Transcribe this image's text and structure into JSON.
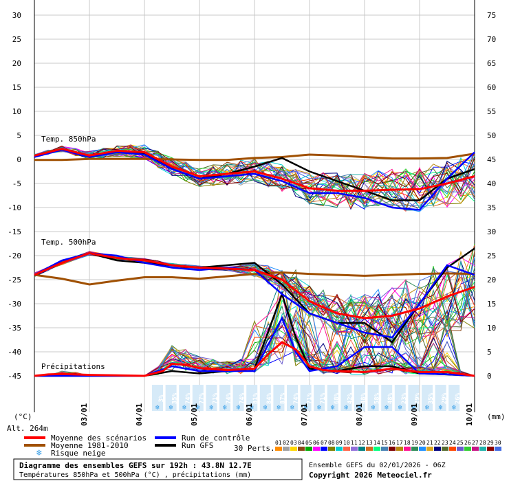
{
  "chart_data": {
    "type": "line",
    "title": "Diagramme des ensembles GEFS sur 192h : 43.8N 12.7E",
    "subtitle": "Températures 850hPa et 500hPa (°C) , précipitations (mm)",
    "run_info": "Ensemble GEFS du 02/01/2026 - 06Z",
    "copyright": "Copyright 2026 Meteociel.fr",
    "altitude": "Alt. 264m",
    "ylabel_left": "(°C)",
    "ylabel_right": "(mm)",
    "left_axis": {
      "ticks": [
        30,
        25,
        20,
        15,
        10,
        5,
        0,
        -5,
        -10,
        -15,
        -20,
        -25,
        -30,
        -35,
        -40,
        -45
      ],
      "range": [
        -45,
        30
      ]
    },
    "right_axis": {
      "ticks": [
        75,
        70,
        65,
        60,
        55,
        50,
        45,
        40,
        35,
        30,
        25,
        20,
        15,
        10,
        5,
        0
      ],
      "range": [
        0,
        75
      ]
    },
    "x_axis": {
      "range_hours": [
        0,
        192
      ],
      "date_labels": [
        "03/01",
        "04/01",
        "05/01",
        "06/01",
        "07/01",
        "08/01",
        "09/01",
        "10/01"
      ]
    },
    "grid": true,
    "sections": {
      "t850": "Temp. 850hPa",
      "t500": "Temp. 500hPa",
      "precip": "Précipitations"
    },
    "snow_risk_percent": [
      "3%",
      "35%",
      "74%",
      "77%",
      "71%",
      "74%",
      "74%",
      "81%",
      "84%",
      "87%",
      "74%",
      "71%",
      "71%",
      "68%",
      "42%",
      "48%",
      "58%",
      "48%",
      "23%",
      "29%",
      "35%",
      "29%",
      "26%"
    ],
    "legend": {
      "mean": "Moyenne des scénarios",
      "climo": "Moyenne 1981-2010",
      "snow": "Risque neige",
      "control": "Run de contrôle",
      "gfs": "Run GFS",
      "perts": "30 Perts."
    },
    "pert_numbers": [
      "01",
      "02",
      "03",
      "04",
      "05",
      "06",
      "07",
      "08",
      "09",
      "10",
      "11",
      "12",
      "13",
      "14",
      "15",
      "16",
      "17",
      "18",
      "19",
      "20",
      "21",
      "22",
      "23",
      "24",
      "25",
      "26",
      "27",
      "28",
      "29",
      "30"
    ],
    "pert_colors": [
      "#ff8c00",
      "#a0a0a0",
      "#ffd700",
      "#8b4513",
      "#00aa00",
      "#ff00ff",
      "#0000ff",
      "#808000",
      "#00ced1",
      "#ff6347",
      "#9370db",
      "#008080",
      "#d2691e",
      "#00ff7f",
      "#4682b4",
      "#800000",
      "#b8860b",
      "#ff1493",
      "#2e8b57",
      "#1e90ff",
      "#daa520",
      "#000080",
      "#556b2f",
      "#ff4500",
      "#6a5acd",
      "#32cd32",
      "#c71585",
      "#20b2aa",
      "#8b0000",
      "#4169e1"
    ],
    "series": [
      {
        "name": "Moyenne des scénarios",
        "color": "#ff0000",
        "t850": [
          [
            0,
            0.8
          ],
          [
            12,
            2.2
          ],
          [
            24,
            0.8
          ],
          [
            36,
            1.8
          ],
          [
            48,
            1.5
          ],
          [
            60,
            -1.5
          ],
          [
            72,
            -3.5
          ],
          [
            84,
            -3
          ],
          [
            96,
            -2.5
          ],
          [
            108,
            -4
          ],
          [
            120,
            -6
          ],
          [
            132,
            -6.5
          ],
          [
            144,
            -6.5
          ],
          [
            156,
            -6.3
          ],
          [
            168,
            -6.2
          ],
          [
            180,
            -5
          ],
          [
            192,
            -3.5
          ]
        ],
        "t500": [
          [
            0,
            -24
          ],
          [
            12,
            -21.5
          ],
          [
            24,
            -19.5
          ],
          [
            36,
            -20.5
          ],
          [
            48,
            -21
          ],
          [
            60,
            -22
          ],
          [
            72,
            -22.5
          ],
          [
            84,
            -22.7
          ],
          [
            96,
            -23
          ],
          [
            108,
            -25
          ],
          [
            120,
            -29.5
          ],
          [
            132,
            -32
          ],
          [
            144,
            -33
          ],
          [
            156,
            -32.5
          ],
          [
            168,
            -31
          ],
          [
            180,
            -28.5
          ],
          [
            192,
            -26.5
          ]
        ],
        "precip": [
          [
            0,
            0
          ],
          [
            6,
            0.3
          ],
          [
            12,
            0.4
          ],
          [
            24,
            0.2
          ],
          [
            36,
            0.1
          ],
          [
            48,
            0
          ],
          [
            56,
            1
          ],
          [
            60,
            2.5
          ],
          [
            66,
            2.3
          ],
          [
            72,
            1.6
          ],
          [
            84,
            1.2
          ],
          [
            96,
            1.5
          ],
          [
            102,
            4.5
          ],
          [
            108,
            7
          ],
          [
            114,
            5.5
          ],
          [
            120,
            2
          ],
          [
            126,
            1.2
          ],
          [
            132,
            1
          ],
          [
            144,
            0.8
          ],
          [
            156,
            1.5
          ],
          [
            168,
            0.8
          ],
          [
            180,
            0.8
          ],
          [
            192,
            0
          ]
        ]
      },
      {
        "name": "Moyenne 1981-2010",
        "color": "#a05000",
        "t850": [
          [
            0,
            -0.1
          ],
          [
            12,
            -0.1
          ],
          [
            24,
            0.1
          ],
          [
            36,
            0.1
          ],
          [
            48,
            0.1
          ],
          [
            60,
            0
          ],
          [
            72,
            -0.1
          ],
          [
            84,
            -0.1
          ],
          [
            96,
            0.3
          ],
          [
            108,
            0.5
          ],
          [
            120,
            1
          ],
          [
            132,
            0.8
          ],
          [
            144,
            0.5
          ],
          [
            156,
            0.2
          ],
          [
            168,
            0.2
          ],
          [
            180,
            0.3
          ],
          [
            192,
            1.2
          ]
        ],
        "t500": [
          [
            0,
            -24
          ],
          [
            12,
            -24.8
          ],
          [
            24,
            -26
          ],
          [
            36,
            -25.2
          ],
          [
            48,
            -24.5
          ],
          [
            60,
            -24.5
          ],
          [
            72,
            -24.8
          ],
          [
            84,
            -24.3
          ],
          [
            96,
            -23.8
          ],
          [
            108,
            -23.5
          ],
          [
            120,
            -23.8
          ],
          [
            132,
            -24
          ],
          [
            144,
            -24.2
          ],
          [
            156,
            -24
          ],
          [
            168,
            -23.8
          ],
          [
            180,
            -23.7
          ],
          [
            192,
            -23.8
          ]
        ]
      },
      {
        "name": "Run de contrôle",
        "color": "#0000ff",
        "t850": [
          [
            0,
            0.5
          ],
          [
            12,
            2
          ],
          [
            24,
            0.5
          ],
          [
            36,
            1.5
          ],
          [
            48,
            1
          ],
          [
            60,
            -2
          ],
          [
            72,
            -4
          ],
          [
            84,
            -3.5
          ],
          [
            96,
            -3
          ],
          [
            108,
            -4.5
          ],
          [
            120,
            -7
          ],
          [
            132,
            -7
          ],
          [
            144,
            -8
          ],
          [
            156,
            -10
          ],
          [
            168,
            -10.5
          ],
          [
            180,
            -4
          ],
          [
            192,
            1.5
          ]
        ],
        "t500": [
          [
            0,
            -24
          ],
          [
            12,
            -21
          ],
          [
            24,
            -19.5
          ],
          [
            36,
            -20
          ],
          [
            48,
            -21.5
          ],
          [
            60,
            -22.5
          ],
          [
            72,
            -23
          ],
          [
            84,
            -22.5
          ],
          [
            96,
            -23
          ],
          [
            108,
            -28
          ],
          [
            120,
            -32
          ],
          [
            132,
            -34
          ],
          [
            144,
            -36
          ],
          [
            156,
            -37
          ],
          [
            168,
            -30
          ],
          [
            180,
            -22
          ],
          [
            192,
            -24
          ]
        ],
        "precip": [
          [
            0,
            0
          ],
          [
            24,
            0
          ],
          [
            48,
            0
          ],
          [
            60,
            2
          ],
          [
            72,
            1
          ],
          [
            96,
            1
          ],
          [
            108,
            12
          ],
          [
            114,
            5
          ],
          [
            120,
            1
          ],
          [
            132,
            2
          ],
          [
            144,
            6
          ],
          [
            156,
            6
          ],
          [
            168,
            0.5
          ],
          [
            180,
            0.3
          ],
          [
            192,
            0
          ]
        ]
      },
      {
        "name": "Run GFS",
        "color": "#000000",
        "t850": [
          [
            0,
            0.7
          ],
          [
            12,
            2
          ],
          [
            24,
            0.8
          ],
          [
            36,
            1.5
          ],
          [
            48,
            1.2
          ],
          [
            60,
            -2
          ],
          [
            72,
            -4
          ],
          [
            84,
            -3
          ],
          [
            96,
            -1.5
          ],
          [
            108,
            0.3
          ],
          [
            120,
            -2.5
          ],
          [
            132,
            -4.5
          ],
          [
            144,
            -6.5
          ],
          [
            156,
            -8.5
          ],
          [
            168,
            -8.5
          ],
          [
            180,
            -4
          ],
          [
            192,
            -2
          ]
        ],
        "t500": [
          [
            0,
            -24
          ],
          [
            12,
            -21.5
          ],
          [
            24,
            -19.5
          ],
          [
            36,
            -21
          ],
          [
            48,
            -21.5
          ],
          [
            60,
            -22
          ],
          [
            72,
            -22.5
          ],
          [
            84,
            -22
          ],
          [
            96,
            -21.5
          ],
          [
            108,
            -26
          ],
          [
            120,
            -32
          ],
          [
            132,
            -34
          ],
          [
            144,
            -34
          ],
          [
            156,
            -38
          ],
          [
            168,
            -30
          ],
          [
            180,
            -22.5
          ],
          [
            192,
            -18.5
          ]
        ],
        "precip": [
          [
            0,
            0
          ],
          [
            24,
            0
          ],
          [
            48,
            0
          ],
          [
            60,
            1
          ],
          [
            72,
            0.5
          ],
          [
            96,
            1.5
          ],
          [
            108,
            17
          ],
          [
            114,
            8
          ],
          [
            120,
            1.5
          ],
          [
            132,
            1
          ],
          [
            144,
            2
          ],
          [
            156,
            2
          ],
          [
            168,
            0.5
          ],
          [
            180,
            0.3
          ],
          [
            192,
            0
          ]
        ]
      }
    ]
  }
}
